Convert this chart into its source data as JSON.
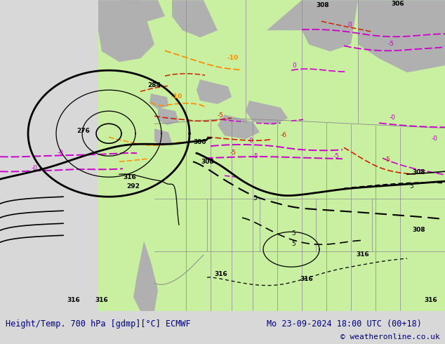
{
  "title_left": "Height/Temp. 700 hPa [gdmp][°C] ECMWF",
  "title_right": "Mo 23-09-2024 18:00 UTC (00+18)",
  "copyright": "© weatheronline.co.uk",
  "fig_width": 6.34,
  "fig_height": 4.9,
  "dpi": 100,
  "bg_color": "#d8d8d8",
  "land_green": "#c8f0a0",
  "land_gray": "#b0b0b0",
  "ocean_color": "#d0d0d0",
  "bottom_bg": "#f0f0f0",
  "title_color": "#000080",
  "black": "#000000",
  "orange": "#ff8c00",
  "red": "#cc2200",
  "magenta": "#cc00cc",
  "boundary_color": "#888888",
  "label_fs": 6.5,
  "title_fs": 8.5,
  "copy_fs": 8.0
}
